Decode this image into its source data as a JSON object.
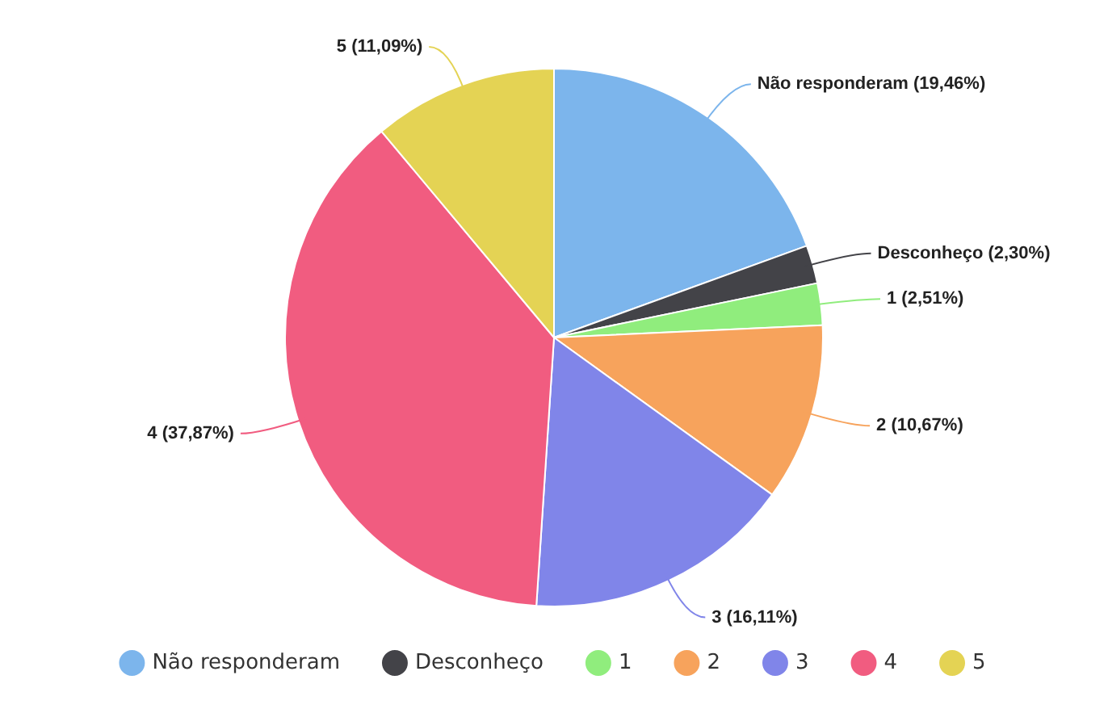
{
  "chart_data": {
    "type": "pie",
    "categories": [
      "Não responderam",
      "Desconheço",
      "1",
      "2",
      "3",
      "4",
      "5"
    ],
    "values": [
      19.46,
      2.3,
      2.51,
      10.67,
      16.11,
      37.87,
      11.09
    ],
    "colors": [
      "#7cb5ec",
      "#434348",
      "#90ed7d",
      "#f7a35c",
      "#8085e9",
      "#f15c80",
      "#e4d354"
    ],
    "value_labels": [
      "Não responderam (19,46%)",
      "Desconheço (2,30%)",
      "1 (2,51%)",
      "2 (10,67%)",
      "3 (16,11%)",
      "4 (37,87%)",
      "5 (11,09%)"
    ],
    "legend": "bottom"
  }
}
